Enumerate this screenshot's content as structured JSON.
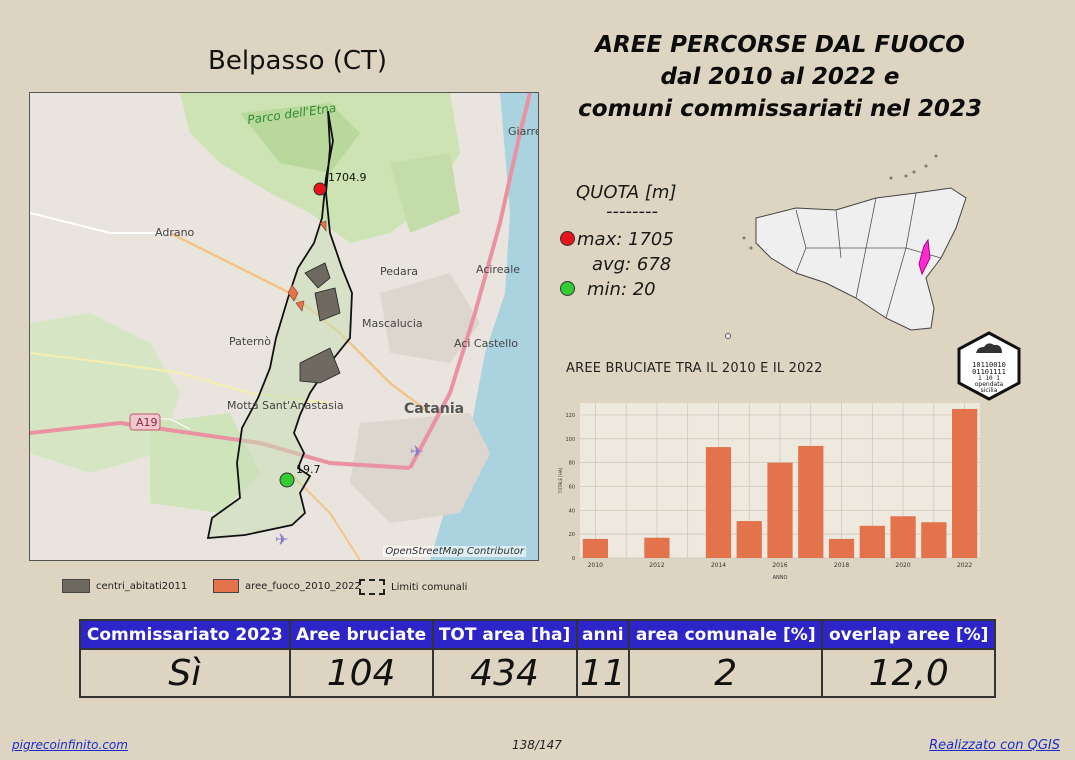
{
  "town": "Belpasso (CT)",
  "title_lines": [
    "AREE PERCORSE DAL FUOCO",
    "dal 2010 al 2022 e",
    "comuni commissariati nel 2023"
  ],
  "map": {
    "labels": [
      "Parco dell'Etna",
      "Giarre",
      "Adrano",
      "Pedara",
      "Acireale",
      "Mascalucia",
      "Paternò",
      "Aci Castello",
      "Motta Sant'Anastasia",
      "Catania",
      "A19"
    ],
    "point_max_label": "1704.9",
    "point_min_label": "19.7",
    "attribution": "OpenStreetMap Contributor"
  },
  "legend": {
    "centri": "centri_abitati2011",
    "fuoco": "aree_fuoco_2010_2022",
    "limiti": "Limiti comunali"
  },
  "quota": {
    "title": "QUOTA [m]",
    "sep": "--------",
    "max": "max: 1705",
    "avg": "avg: 678",
    "min": "min: 20",
    "max_color": "#e8141c",
    "min_color": "#33cc33"
  },
  "logo": {
    "bits1": "10110010",
    "bits2": "01101111",
    "bits3": "1  10 1",
    "text1": "opendata",
    "text2": "sicilia"
  },
  "chart_data": {
    "type": "bar",
    "title": "AREE BRUCIATE TRA IL 2010 E IL 2022",
    "xlabel": "ANNO",
    "ylabel": "TOTALE [HA]",
    "categories": [
      2010,
      2011,
      2012,
      2013,
      2014,
      2015,
      2016,
      2017,
      2018,
      2019,
      2020,
      2021,
      2022
    ],
    "values": [
      16,
      0,
      17,
      0,
      93,
      31,
      80,
      94,
      16,
      27,
      35,
      30,
      125
    ],
    "x_ticks": [
      "2010",
      "2012",
      "2014",
      "2016",
      "2018",
      "2020",
      "2022"
    ],
    "y_ticks": [
      "0",
      "20",
      "40",
      "60",
      "80",
      "100",
      "120"
    ],
    "ylim": [
      0,
      130
    ],
    "grid": true,
    "bar_color": "#e2734a"
  },
  "table": {
    "headers": [
      "Commissariato 2023",
      "Aree bruciate",
      "TOT area [ha]",
      "anni",
      "area comunale [%]",
      "overlap aree [%]"
    ],
    "values": [
      "Sì",
      "104",
      "434",
      "11",
      "2",
      "12,0"
    ]
  },
  "footer": {
    "left": "pigrecoinfinito.com",
    "center": "138/147",
    "right": "Realizzato con QGIS"
  }
}
